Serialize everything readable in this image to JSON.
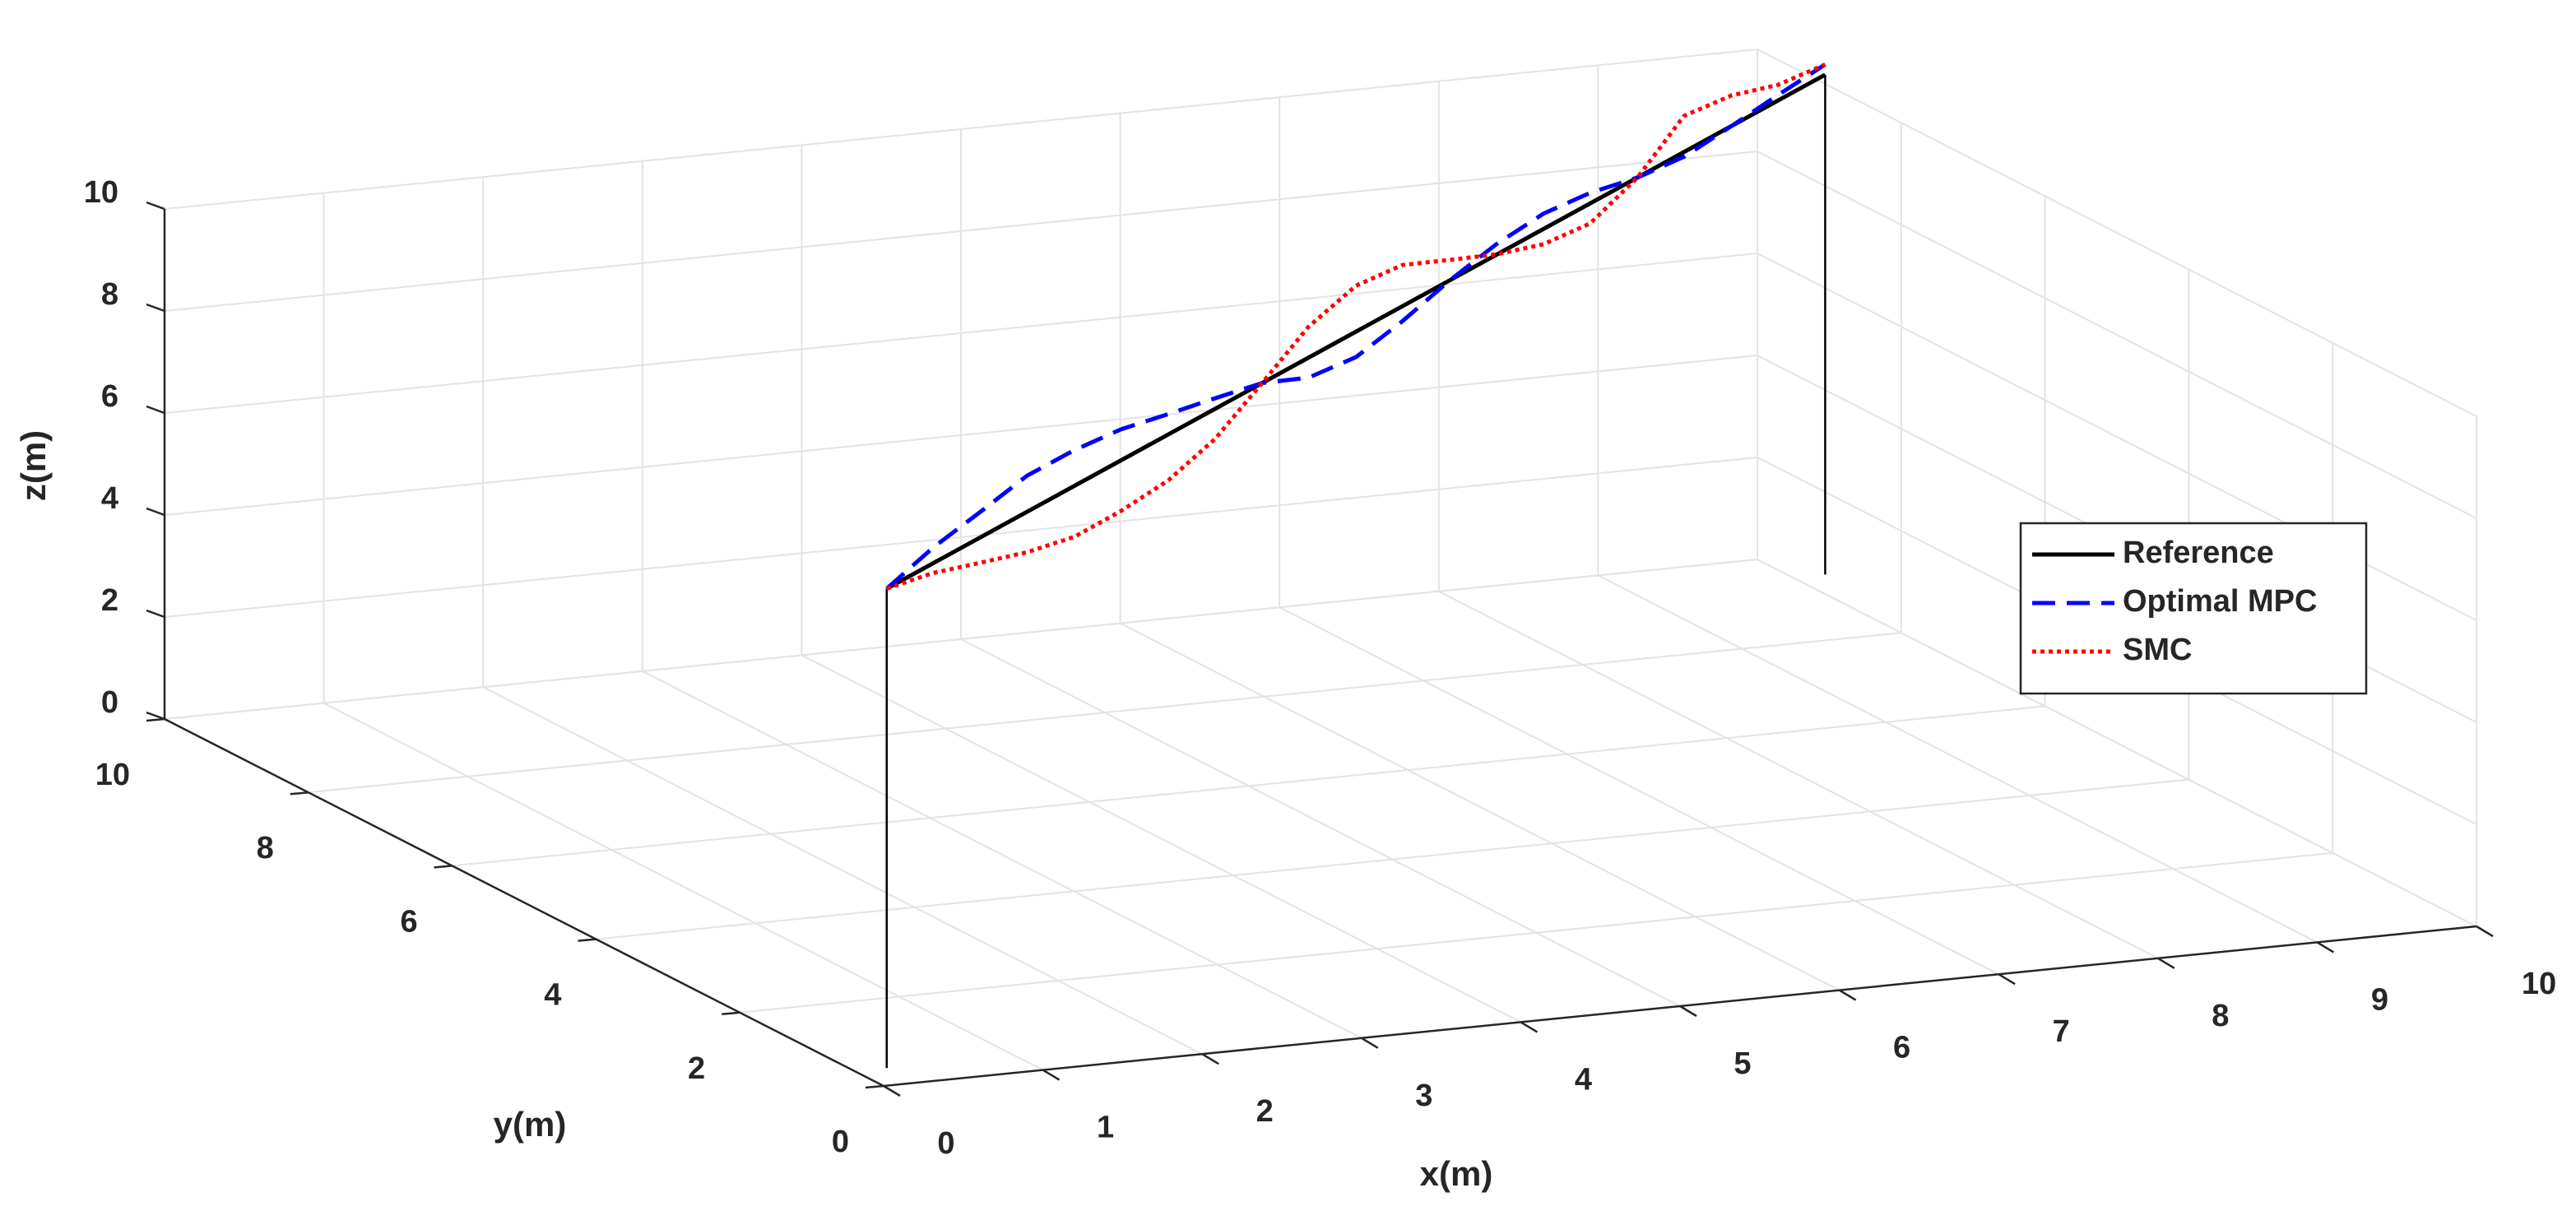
{
  "chart_data": {
    "type": "line3d",
    "xlabel": "x(m)",
    "ylabel": "y(m)",
    "zlabel": "z(m)",
    "xlim": [
      0,
      10
    ],
    "ylim": [
      0,
      10
    ],
    "zlim": [
      0,
      10
    ],
    "xticks": [
      0,
      1,
      2,
      3,
      4,
      5,
      6,
      7,
      8,
      9,
      10
    ],
    "yticks": [
      0,
      2,
      4,
      6,
      8,
      10
    ],
    "zticks": [
      0,
      2,
      4,
      6,
      8,
      10
    ],
    "grid": true,
    "legend_loc": "east",
    "series": [
      {
        "name": "Reference",
        "color": "#000000",
        "style": "solid",
        "stems": true,
        "x": [
          0.2,
          10.2
        ],
        "y": [
          0.4,
          9.5
        ],
        "z": [
          9.4,
          9.8
        ]
      },
      {
        "name": "Optimal MPC",
        "color": "#0000ff",
        "style": "dashed",
        "x": [
          0.2,
          0.7,
          1.2,
          1.7,
          2.2,
          2.7,
          3.2,
          3.7,
          4.2,
          4.7,
          5.2,
          5.7,
          6.2,
          6.7,
          7.2,
          7.7,
          8.2,
          8.7,
          9.2,
          9.7,
          10.2
        ],
        "y": [
          0.4,
          0.86,
          1.31,
          1.77,
          2.22,
          2.68,
          3.13,
          3.59,
          4.04,
          4.5,
          4.95,
          5.41,
          5.86,
          6.32,
          6.77,
          7.23,
          7.68,
          8.14,
          8.59,
          9.05,
          9.5
        ],
        "z": [
          9.4,
          9.72,
          9.94,
          10.16,
          10.18,
          10.1,
          9.92,
          9.74,
          9.56,
          9.18,
          9.1,
          9.32,
          9.64,
          9.86,
          9.98,
          9.9,
          9.72,
          9.64,
          9.76,
          9.88,
          10.0
        ]
      },
      {
        "name": "SMC",
        "color": "#ff0000",
        "style": "dotted",
        "x": [
          0.2,
          0.7,
          1.2,
          1.7,
          2.2,
          2.7,
          3.2,
          3.7,
          4.2,
          4.7,
          5.2,
          5.7,
          6.2,
          6.7,
          7.2,
          7.7,
          8.2,
          8.7,
          9.2,
          9.7,
          10.2
        ],
        "y": [
          0.4,
          0.86,
          1.31,
          1.77,
          2.22,
          2.68,
          3.13,
          3.59,
          4.04,
          4.5,
          4.95,
          5.41,
          5.86,
          6.32,
          6.77,
          7.23,
          7.68,
          8.14,
          8.59,
          9.05,
          9.5
        ],
        "z": [
          9.4,
          9.22,
          8.94,
          8.66,
          8.48,
          8.5,
          8.62,
          8.94,
          9.56,
          10.18,
          10.5,
          10.42,
          10.04,
          9.66,
          9.38,
          9.3,
          9.72,
          10.44,
          10.36,
          10.08,
          10.0
        ]
      }
    ]
  }
}
